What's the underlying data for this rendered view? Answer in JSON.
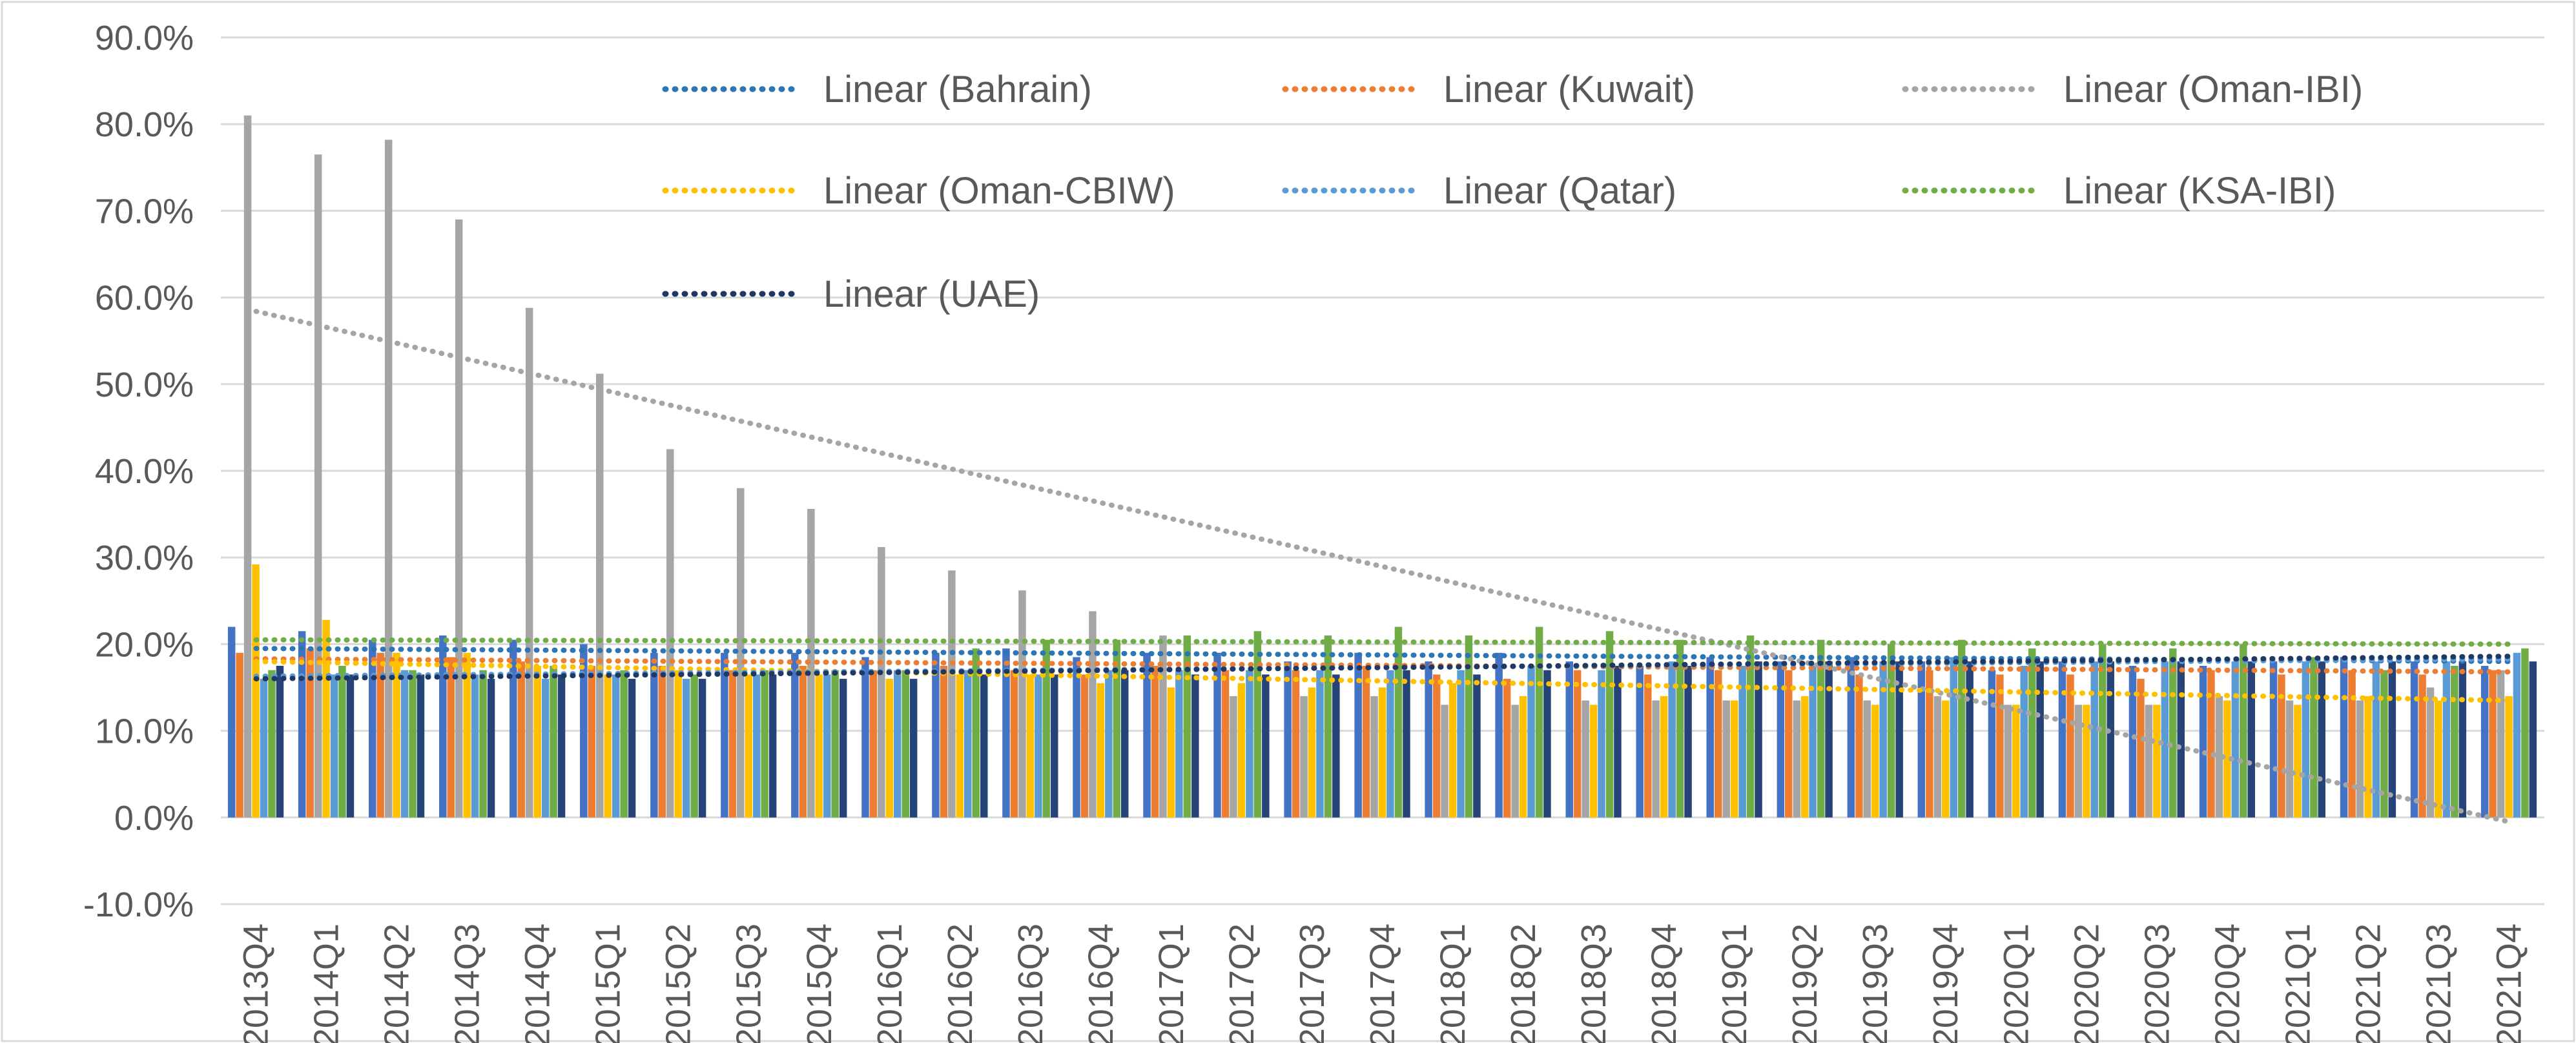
{
  "chart_data": {
    "type": "bar",
    "title": "",
    "xlabel": "",
    "ylabel": "",
    "ylim": [
      -0.1,
      0.9
    ],
    "ytick_step": 0.1,
    "grid": "horizontal",
    "legend_position": "top-right",
    "categories": [
      "2013Q4",
      "2014Q1",
      "2014Q2",
      "2014Q3",
      "2014Q4",
      "2015Q1",
      "2015Q2",
      "2015Q3",
      "2015Q4",
      "2016Q1",
      "2016Q2",
      "2016Q3",
      "2016Q4",
      "2017Q1",
      "2017Q2",
      "2017Q3",
      "2017Q4",
      "2018Q1",
      "2018Q2",
      "2018Q3",
      "2018Q4",
      "2019Q1",
      "2019Q2",
      "2019Q3",
      "2019Q4",
      "2020Q1",
      "2020Q2",
      "2020Q3",
      "2020Q4",
      "2021Q1",
      "2021Q2",
      "2021Q3",
      "2021Q4"
    ],
    "series": [
      {
        "key": "bahrain",
        "color": "#4472C4",
        "values": [
          0.22,
          0.215,
          0.205,
          0.21,
          0.205,
          0.2,
          0.19,
          0.19,
          0.19,
          0.185,
          0.19,
          0.195,
          0.185,
          0.19,
          0.19,
          0.18,
          0.19,
          0.18,
          0.19,
          0.18,
          0.175,
          0.185,
          0.18,
          0.185,
          0.18,
          0.17,
          0.18,
          0.175,
          0.175,
          0.18,
          0.185,
          0.18,
          0.175
        ]
      },
      {
        "key": "kuwait",
        "color": "#ED7D31",
        "values": [
          0.19,
          0.195,
          0.19,
          0.185,
          0.18,
          0.175,
          0.175,
          0.17,
          0.175,
          0.17,
          0.175,
          0.17,
          0.165,
          0.175,
          0.17,
          0.17,
          0.175,
          0.165,
          0.16,
          0.17,
          0.165,
          0.17,
          0.17,
          0.165,
          0.17,
          0.165,
          0.165,
          0.16,
          0.17,
          0.165,
          0.17,
          0.165,
          0.17
        ]
      },
      {
        "key": "oman_ibi",
        "color": "#A5A5A5",
        "values": [
          0.81,
          0.765,
          0.782,
          0.69,
          0.588,
          0.512,
          0.425,
          0.38,
          0.356,
          0.312,
          0.285,
          0.262,
          0.238,
          0.21,
          0.14,
          0.14,
          0.14,
          0.13,
          0.13,
          0.135,
          0.135,
          0.135,
          0.135,
          0.135,
          0.14,
          0.13,
          0.13,
          0.13,
          0.14,
          0.135,
          0.135,
          0.15,
          0.17
        ]
      },
      {
        "key": "oman_cbiw",
        "color": "#FFC000",
        "values": [
          0.292,
          0.228,
          0.19,
          0.19,
          0.175,
          0.165,
          0.17,
          0.165,
          0.165,
          0.16,
          0.165,
          0.165,
          0.155,
          0.15,
          0.155,
          0.15,
          0.15,
          0.155,
          0.14,
          0.13,
          0.14,
          0.135,
          0.14,
          0.13,
          0.135,
          0.13,
          0.13,
          0.13,
          0.135,
          0.13,
          0.14,
          0.135,
          0.14
        ]
      },
      {
        "key": "qatar",
        "color": "#5B9BD5",
        "values": [
          0.16,
          0.165,
          0.17,
          0.165,
          0.16,
          0.165,
          0.16,
          0.165,
          0.165,
          0.17,
          0.17,
          0.165,
          0.17,
          0.17,
          0.17,
          0.17,
          0.17,
          0.17,
          0.175,
          0.17,
          0.18,
          0.175,
          0.175,
          0.18,
          0.185,
          0.175,
          0.18,
          0.18,
          0.18,
          0.18,
          0.18,
          0.18,
          0.19
        ]
      },
      {
        "key": "ksa_ibi",
        "color": "#70AD47",
        "values": [
          0.17,
          0.175,
          0.17,
          0.17,
          0.175,
          0.17,
          0.165,
          0.17,
          0.17,
          0.17,
          0.195,
          0.205,
          0.205,
          0.21,
          0.215,
          0.21,
          0.22,
          0.21,
          0.22,
          0.215,
          0.205,
          0.21,
          0.205,
          0.2,
          0.205,
          0.195,
          0.2,
          0.195,
          0.2,
          0.185,
          0.17,
          0.175,
          0.195
        ]
      },
      {
        "key": "uae",
        "color": "#264478",
        "values": [
          0.175,
          0.165,
          0.165,
          0.16,
          0.165,
          0.16,
          0.16,
          0.165,
          0.16,
          0.16,
          0.165,
          0.165,
          0.17,
          0.165,
          0.165,
          0.165,
          0.17,
          0.165,
          0.17,
          0.175,
          0.175,
          0.18,
          0.18,
          0.18,
          0.18,
          0.18,
          0.18,
          0.18,
          0.18,
          0.18,
          0.18,
          0.18,
          0.18
        ]
      }
    ],
    "trendlines": [
      {
        "key": "bahrain",
        "name": "Linear (Bahrain)",
        "color": "#2E75B6",
        "start": 0.195,
        "end": 0.18
      },
      {
        "key": "kuwait",
        "name": "Linear (Kuwait)",
        "color": "#ED7D31",
        "start": 0.183,
        "end": 0.168
      },
      {
        "key": "oman_ibi",
        "name": "Linear (Oman-IBI)",
        "color": "#A5A5A5",
        "start": 0.584,
        "end": -0.005
      },
      {
        "key": "oman_cbiw",
        "name": "Linear (Oman-CBIW)",
        "color": "#FFC000",
        "start": 0.18,
        "end": 0.135
      },
      {
        "key": "qatar",
        "name": "Linear (Qatar)",
        "color": "#5B9BD5",
        "start": 0.163,
        "end": 0.183
      },
      {
        "key": "ksa_ibi",
        "name": "Linear (KSA-IBI)",
        "color": "#70AD47",
        "start": 0.205,
        "end": 0.2
      },
      {
        "key": "uae",
        "name": "Linear (UAE)",
        "color": "#1F3864",
        "start": 0.16,
        "end": 0.186
      }
    ]
  }
}
